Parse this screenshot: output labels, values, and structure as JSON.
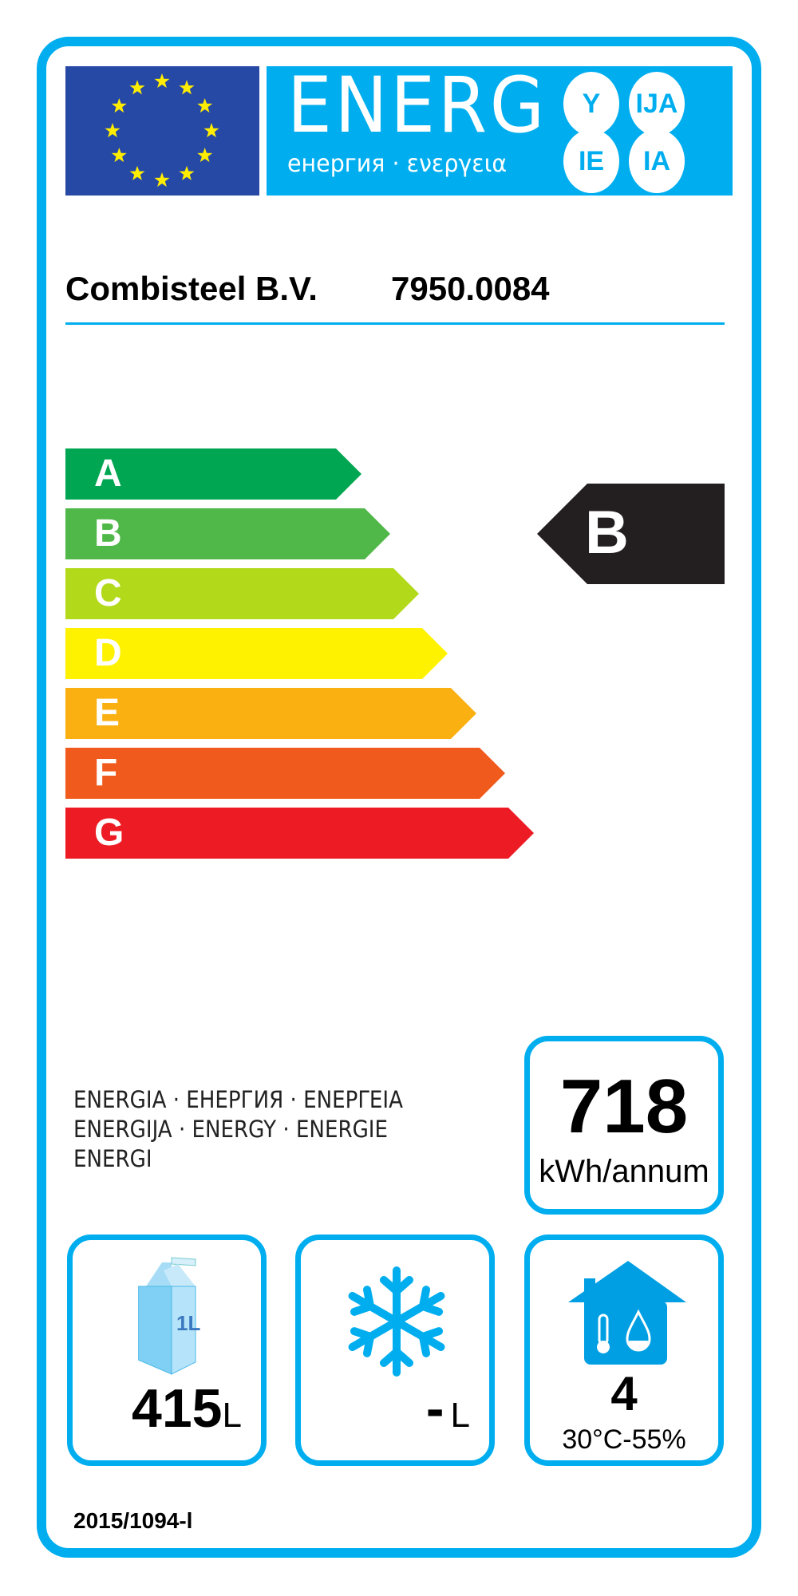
{
  "header": {
    "energy_word": "ENERG",
    "energy_subtitle": "енергия · ενεργεια",
    "suffixes": [
      "Y",
      "IJA",
      "IE",
      "IA"
    ],
    "eu_flag": "eu-flag-icon"
  },
  "supplier": "Combisteel B.V.",
  "model": "7950.0084",
  "scale": {
    "classes": [
      "A",
      "B",
      "C",
      "D",
      "E",
      "F",
      "G"
    ],
    "colors": [
      "#00a651",
      "#50b848",
      "#b2d91a",
      "#fff200",
      "#f9b010",
      "#f15a1d",
      "#ed1c24"
    ]
  },
  "rating": {
    "class": "B",
    "color": "#231f20"
  },
  "energy_words": [
    "ENERGIA · ЕНЕРГИЯ · ΕΝΕΡΓΕΙΑ",
    "ENERGIJA · ENERGY · ENERGIE",
    "ENERGI"
  ],
  "consumption": {
    "value": "718",
    "unit": "kWh/annum"
  },
  "chill": {
    "icon": "milk-carton-icon",
    "carton_label": "1L",
    "value": "415",
    "unit": "L"
  },
  "frozen": {
    "icon": "snowflake-icon",
    "value": "-",
    "unit": "L"
  },
  "climate": {
    "icon": "house-thermometer-drop-icon",
    "value": "4",
    "condition": "30°C-55%"
  },
  "regulation": "2015/1094-l",
  "accent": "#00aeef"
}
